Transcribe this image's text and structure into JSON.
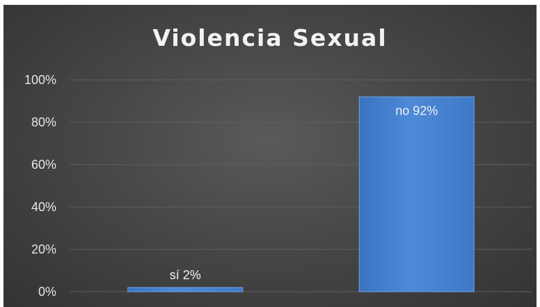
{
  "chart_data": {
    "type": "bar",
    "title": "Violencia Sexual",
    "categories": [
      "sí",
      "no"
    ],
    "values": [
      2,
      92
    ],
    "data_labels": [
      "sí 2%",
      "no 92%"
    ],
    "y_ticks": [
      "0%",
      "20%",
      "40%",
      "60%",
      "80%",
      "100%"
    ],
    "ylim": [
      0,
      100
    ],
    "grid": true,
    "colors": {
      "bar": "#4a86d4",
      "background": "#474747",
      "grid": "#5f5f5f"
    }
  }
}
